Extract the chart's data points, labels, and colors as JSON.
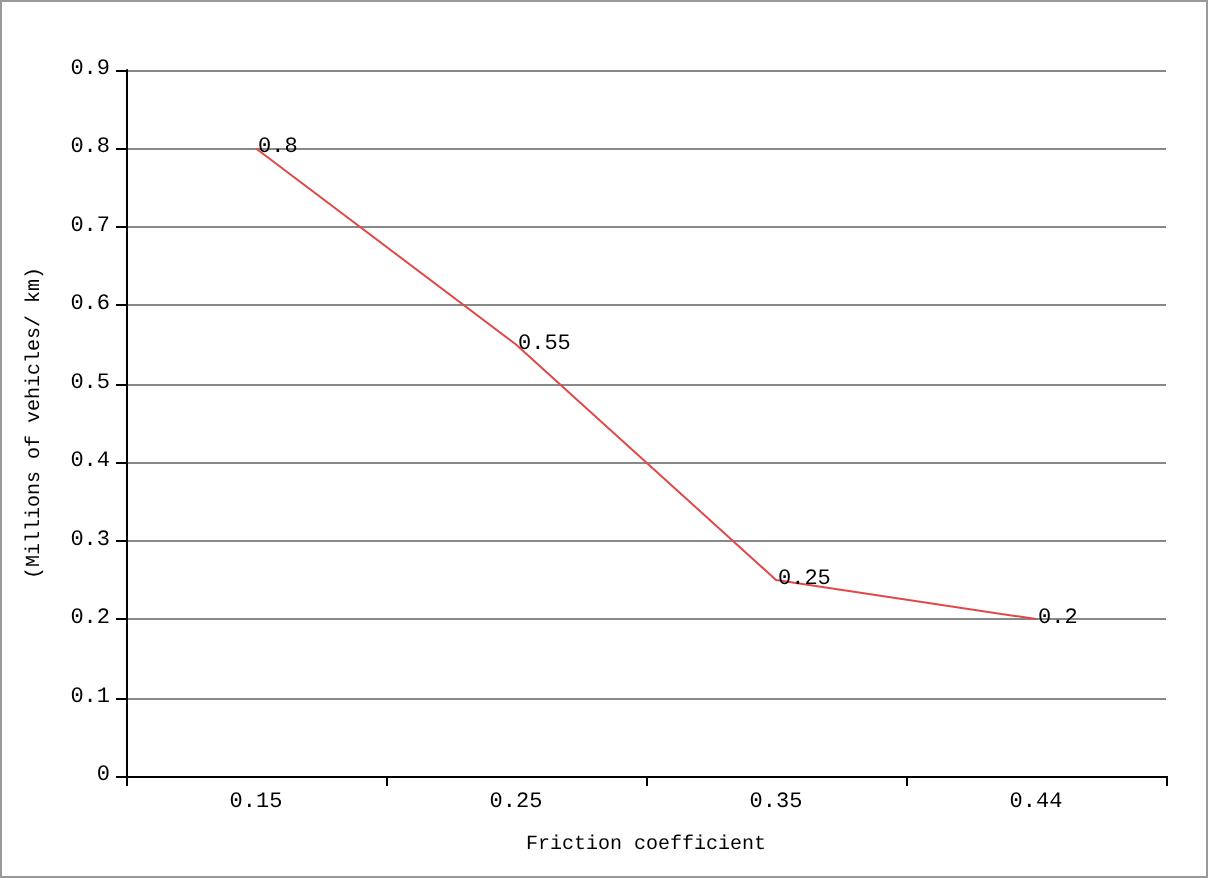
{
  "chart_data": {
    "type": "line",
    "xlabel": "Friction coefficient",
    "ylabel": "(Millions of vehicles/ km)",
    "categories": [
      "0.15",
      "0.25",
      "0.35",
      "0.44"
    ],
    "series": [
      {
        "color": "#e04848",
        "values": [
          0.8,
          0.55,
          0.25,
          0.2
        ]
      }
    ],
    "ylim": [
      0,
      0.9
    ],
    "yticks": [
      0,
      0.1,
      0.2,
      0.3,
      0.4,
      0.5,
      0.6,
      0.7,
      0.8,
      0.9
    ],
    "grid": "y",
    "marker": "none",
    "line_style": "solid",
    "data_labels": true
  }
}
